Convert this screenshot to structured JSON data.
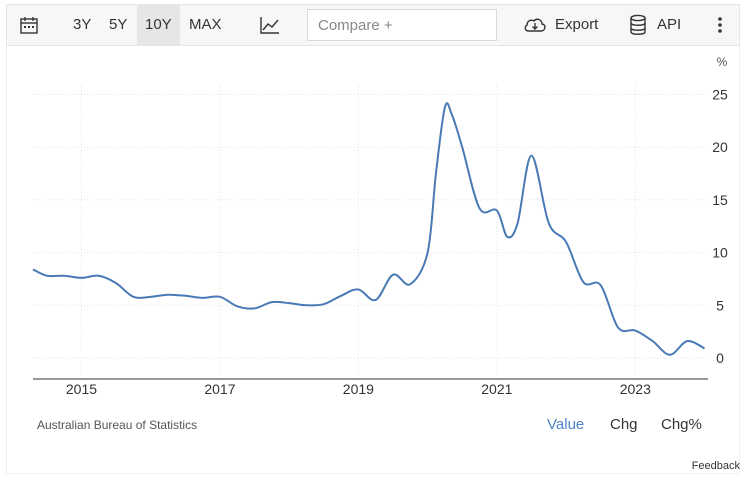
{
  "toolbar": {
    "icons": {
      "calendar": "calendar-icon",
      "chart_type": "line-chart-icon",
      "export": "cloud-download-icon",
      "api": "database-icon",
      "more": "more-vertical-icon"
    },
    "ranges": [
      "3Y",
      "5Y",
      "10Y",
      "MAX"
    ],
    "active_range": "10Y",
    "compare_placeholder": "Compare +",
    "export_label": "Export",
    "api_label": "API"
  },
  "chart_data": {
    "type": "line",
    "title": "",
    "xlabel": "",
    "ylabel": "%",
    "xlim": [
      2014.3,
      2024.05
    ],
    "ylim": [
      -2,
      26
    ],
    "x_ticks": [
      2015,
      2017,
      2019,
      2021,
      2023
    ],
    "x_tick_labels": [
      "2015",
      "2017",
      "2019",
      "2021",
      "2023"
    ],
    "y_ticks": [
      0,
      5,
      10,
      15,
      20,
      25
    ],
    "y_tick_labels": [
      "0",
      "5",
      "10",
      "15",
      "20",
      "25"
    ],
    "grid": true,
    "color": "#4a7ab5",
    "series": [
      {
        "x": [
          2014.3,
          2014.5,
          2014.75,
          2015.0,
          2015.25,
          2015.5,
          2015.75,
          2016.0,
          2016.25,
          2016.5,
          2016.75,
          2017.0,
          2017.25,
          2017.5,
          2017.75,
          2018.0,
          2018.25,
          2018.5,
          2018.75,
          2019.0,
          2019.25,
          2019.5,
          2019.75,
          2020.0,
          2020.12,
          2020.25,
          2020.35,
          2020.5,
          2020.75,
          2021.0,
          2021.15,
          2021.3,
          2021.5,
          2021.75,
          2022.0,
          2022.25,
          2022.5,
          2022.75,
          2023.0,
          2023.25,
          2023.5,
          2023.75,
          2024.0
        ],
        "values": [
          8.4,
          7.8,
          7.8,
          7.6,
          7.8,
          7.1,
          5.8,
          5.8,
          6.0,
          5.9,
          5.7,
          5.8,
          4.9,
          4.7,
          5.3,
          5.2,
          5.0,
          5.1,
          5.9,
          6.5,
          5.5,
          7.9,
          7.0,
          10.0,
          17.5,
          23.8,
          23.1,
          20.0,
          14.2,
          14.0,
          11.5,
          12.8,
          19.2,
          12.8,
          11.0,
          7.2,
          6.9,
          2.9,
          2.6,
          1.6,
          0.3,
          1.6,
          0.9
        ]
      }
    ]
  },
  "footer": {
    "source": "Australian Bureau of Statistics",
    "modes": [
      "Value",
      "Chg",
      "Chg%"
    ],
    "active_mode": "Value",
    "feedback": "Feedback"
  }
}
